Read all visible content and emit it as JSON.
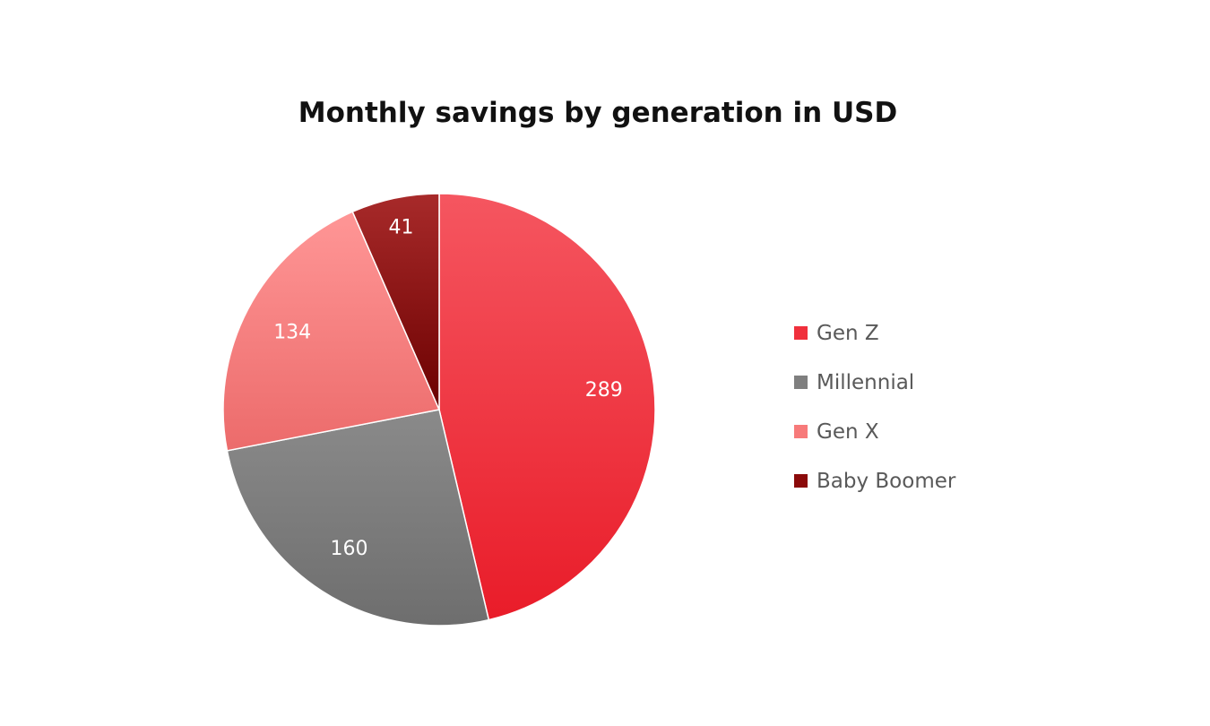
{
  "chart_data": {
    "type": "pie",
    "title": "Monthly savings by generation in USD",
    "categories": [
      "Gen Z",
      "Millennial",
      "Gen X",
      "Baby Boomer"
    ],
    "values": [
      289,
      160,
      134,
      41
    ],
    "colors": [
      "#f0303c",
      "#7f7f7f",
      "#f77a7a",
      "#8b0a0a"
    ],
    "gradients": [
      [
        "#f55660",
        "#e91c29"
      ],
      [
        "#8a8a8a",
        "#6e6e6e"
      ],
      [
        "#ff9696",
        "#ec6b6b"
      ],
      [
        "#a82a2a",
        "#6b0000"
      ]
    ],
    "label_color": "#ffffff",
    "legend_position": "right",
    "start_angle_deg": 0,
    "direction": "clockwise"
  }
}
